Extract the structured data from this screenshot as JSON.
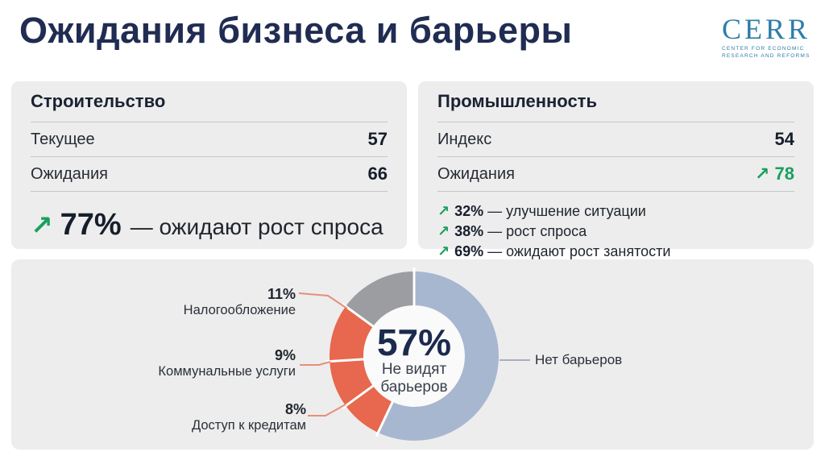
{
  "page": {
    "title": "Ожидания бизнеса и барьеры"
  },
  "logo": {
    "word": "CERR",
    "tagline_line1": "CENTER FOR ECONOMIC",
    "tagline_line2": "RESEARCH AND REFORMS"
  },
  "construction_card": {
    "title": "Строительство",
    "rows": [
      {
        "label": "Текущее",
        "value": "57"
      },
      {
        "label": "Ожидания",
        "value": "66"
      }
    ],
    "highlight": {
      "arrow": "↗",
      "value": "77%",
      "text": "— ожидают рост спроса"
    }
  },
  "industry_card": {
    "title": "Промышленность",
    "rows": [
      {
        "label": "Индекс",
        "value": "54"
      },
      {
        "label": "Ожидания",
        "arrow": "↗",
        "value": "78"
      }
    ],
    "bullets": [
      {
        "arrow": "↗",
        "value": "32%",
        "text": "— улучшение ситуации"
      },
      {
        "arrow": "↗",
        "value": "38%",
        "text": "— рост спроса"
      },
      {
        "arrow": "↗",
        "value": "69%",
        "text": "— ожидают рост занятости"
      }
    ]
  },
  "colors": {
    "accent_green": "#18a05e",
    "navy": "#1b2a4d",
    "orange": "#e7684e",
    "blue_gray": "#a8b7d0",
    "gray_segment": "#9c9da0",
    "leader_orange": "#e78e76",
    "leader_gray": "#a8aeb6",
    "card_bg": "#ededed",
    "hole": "#fafafa"
  },
  "chart_data": {
    "type": "pie",
    "donut": true,
    "direction": "clockwise",
    "start_angle_deg": 0,
    "legend_position": "callouts",
    "center": {
      "value": "57%",
      "line1": "Не видят",
      "line2": "барьеров"
    },
    "segments": [
      {
        "label": "Нет барьеров",
        "value": 57,
        "color": "#a8b7d0"
      },
      {
        "label": "Доступ к кредитам",
        "value": 8,
        "color": "#e7684e"
      },
      {
        "label": "Коммунальные услуги",
        "value": 9,
        "color": "#e7684e"
      },
      {
        "label": "Налогообложение",
        "value": 11,
        "color": "#e7684e"
      },
      {
        "label": "",
        "value": 15,
        "color": "#9c9da0"
      }
    ],
    "callouts": [
      {
        "value": "11%",
        "label": "Налогообложение"
      },
      {
        "value": "9%",
        "label": "Коммунальные услуги"
      },
      {
        "value": "8%",
        "label": "Доступ к кредитам"
      }
    ],
    "right_callout": {
      "label": "Нет барьеров"
    }
  }
}
